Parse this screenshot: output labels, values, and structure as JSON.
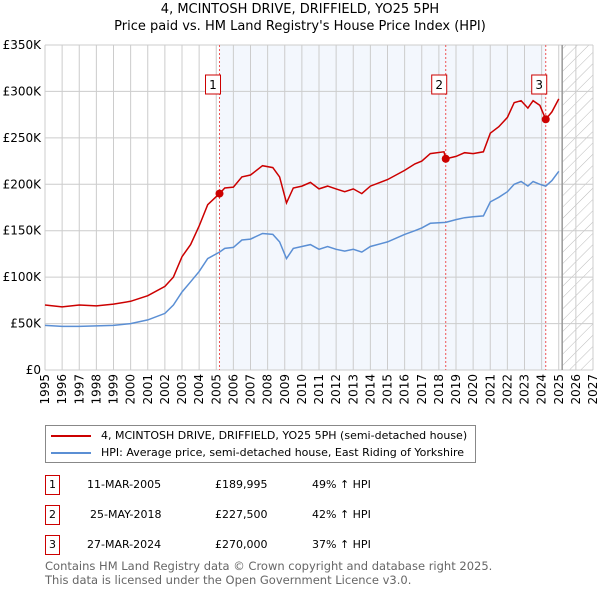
{
  "header": {
    "title": "4, MCINTOSH DRIVE, DRIFFIELD, YO25 5PH",
    "subtitle": "Price paid vs. HM Land Registry's House Price Index (HPI)"
  },
  "chart_data": {
    "type": "line",
    "xlim": [
      1995,
      2027
    ],
    "ylim": [
      0,
      350000
    ],
    "x_ticks": [
      "1995",
      "1996",
      "1997",
      "1998",
      "1999",
      "2000",
      "2001",
      "2002",
      "2003",
      "2004",
      "2005",
      "2006",
      "2007",
      "2008",
      "2009",
      "2010",
      "2011",
      "2012",
      "2013",
      "2014",
      "2015",
      "2016",
      "2017",
      "2018",
      "2019",
      "2020",
      "2021",
      "2022",
      "2023",
      "2024",
      "2025",
      "2026",
      "2027"
    ],
    "y_ticks": [
      {
        "v": 0,
        "label": "£0"
      },
      {
        "v": 50000,
        "label": "£50K"
      },
      {
        "v": 100000,
        "label": "£100K"
      },
      {
        "v": 150000,
        "label": "£150K"
      },
      {
        "v": 200000,
        "label": "£200K"
      },
      {
        "v": 250000,
        "label": "£250K"
      },
      {
        "v": 300000,
        "label": "£300K"
      },
      {
        "v": 350000,
        "label": "£350K"
      }
    ],
    "grid": true,
    "projection_start": 2025.2,
    "series": [
      {
        "name": "4, MCINTOSH DRIVE, DRIFFIELD, YO25 5PH (semi-detached house)",
        "color": "#cc0000",
        "x": [
          1995,
          1996,
          1997,
          1998,
          1999,
          2000,
          2001,
          2002,
          2002.5,
          2003,
          2003.5,
          2004,
          2004.5,
          2005.19,
          2005.5,
          2006,
          2006.5,
          2007,
          2007.7,
          2008.3,
          2008.7,
          2009.1,
          2009.5,
          2010,
          2010.5,
          2011,
          2011.5,
          2012,
          2012.5,
          2013,
          2013.5,
          2014,
          2015,
          2016,
          2016.6,
          2017,
          2017.5,
          2018.3,
          2018.4,
          2019,
          2019.5,
          2020,
          2020.6,
          2021,
          2021.5,
          2022,
          2022.4,
          2022.8,
          2023.2,
          2023.5,
          2023.9,
          2024.24,
          2024.6,
          2025.0
        ],
        "y": [
          70000,
          68000,
          70000,
          69000,
          71000,
          74000,
          80000,
          90000,
          100000,
          122000,
          135000,
          155000,
          178000,
          189995,
          196000,
          197000,
          208000,
          210000,
          220000,
          218000,
          208000,
          180000,
          196000,
          198000,
          202000,
          195000,
          198000,
          195000,
          192000,
          195000,
          190000,
          198000,
          205000,
          215000,
          222000,
          225000,
          233000,
          235000,
          227500,
          230000,
          234000,
          233000,
          235000,
          255000,
          262000,
          272000,
          288000,
          290000,
          282000,
          290000,
          285000,
          270000,
          278000,
          292000
        ]
      },
      {
        "name": "HPI: Average price, semi-detached house, East Riding of Yorkshire",
        "color": "#5b8fd4",
        "x": [
          1995,
          1996,
          1997,
          1998,
          1999,
          2000,
          2001,
          2002,
          2002.5,
          2003,
          2003.5,
          2004,
          2004.5,
          2005.19,
          2005.5,
          2006,
          2006.5,
          2007,
          2007.7,
          2008.3,
          2008.7,
          2009.1,
          2009.5,
          2010,
          2010.5,
          2011,
          2011.5,
          2012,
          2012.5,
          2013,
          2013.5,
          2014,
          2015,
          2016,
          2016.6,
          2017,
          2017.5,
          2018.4,
          2019,
          2019.5,
          2020,
          2020.6,
          2021,
          2021.5,
          2022,
          2022.4,
          2022.8,
          2023.2,
          2023.5,
          2023.9,
          2024.24,
          2024.6,
          2025.0
        ],
        "y": [
          48000,
          47000,
          47000,
          47500,
          48000,
          50000,
          54000,
          61000,
          70000,
          84000,
          95000,
          106000,
          120000,
          127000,
          131000,
          132000,
          140000,
          141000,
          147000,
          146000,
          138000,
          120000,
          131000,
          133000,
          135000,
          130000,
          133000,
          130000,
          128000,
          130000,
          127000,
          133000,
          138000,
          146000,
          150000,
          153000,
          158000,
          159000,
          162000,
          164000,
          165000,
          166000,
          181000,
          186000,
          192000,
          200000,
          203000,
          198000,
          203000,
          200000,
          198000,
          204000,
          214000
        ]
      }
    ],
    "annotations": [
      {
        "label": "1",
        "x": 2005.19,
        "y": 189995
      },
      {
        "label": "2",
        "x": 2018.4,
        "y": 227500
      },
      {
        "label": "3",
        "x": 2024.24,
        "y": 270000
      }
    ]
  },
  "legend": {
    "items": [
      {
        "label": "4, MCINTOSH DRIVE, DRIFFIELD, YO25 5PH (semi-detached house)",
        "color": "#cc0000"
      },
      {
        "label": "HPI: Average price, semi-detached house, East Riding of Yorkshire",
        "color": "#5b8fd4"
      }
    ]
  },
  "sales": [
    {
      "num": "1",
      "date": "11-MAR-2005",
      "price": "£189,995",
      "hpi": "49% ↑ HPI"
    },
    {
      "num": "2",
      "date": "25-MAY-2018",
      "price": "£227,500",
      "hpi": "42% ↑ HPI"
    },
    {
      "num": "3",
      "date": "27-MAR-2024",
      "price": "£270,000",
      "hpi": "37% ↑ HPI"
    }
  ],
  "footer": {
    "line1": "Contains HM Land Registry data © Crown copyright and database right 2025.",
    "line2": "This data is licensed under the Open Government Licence v3.0."
  }
}
